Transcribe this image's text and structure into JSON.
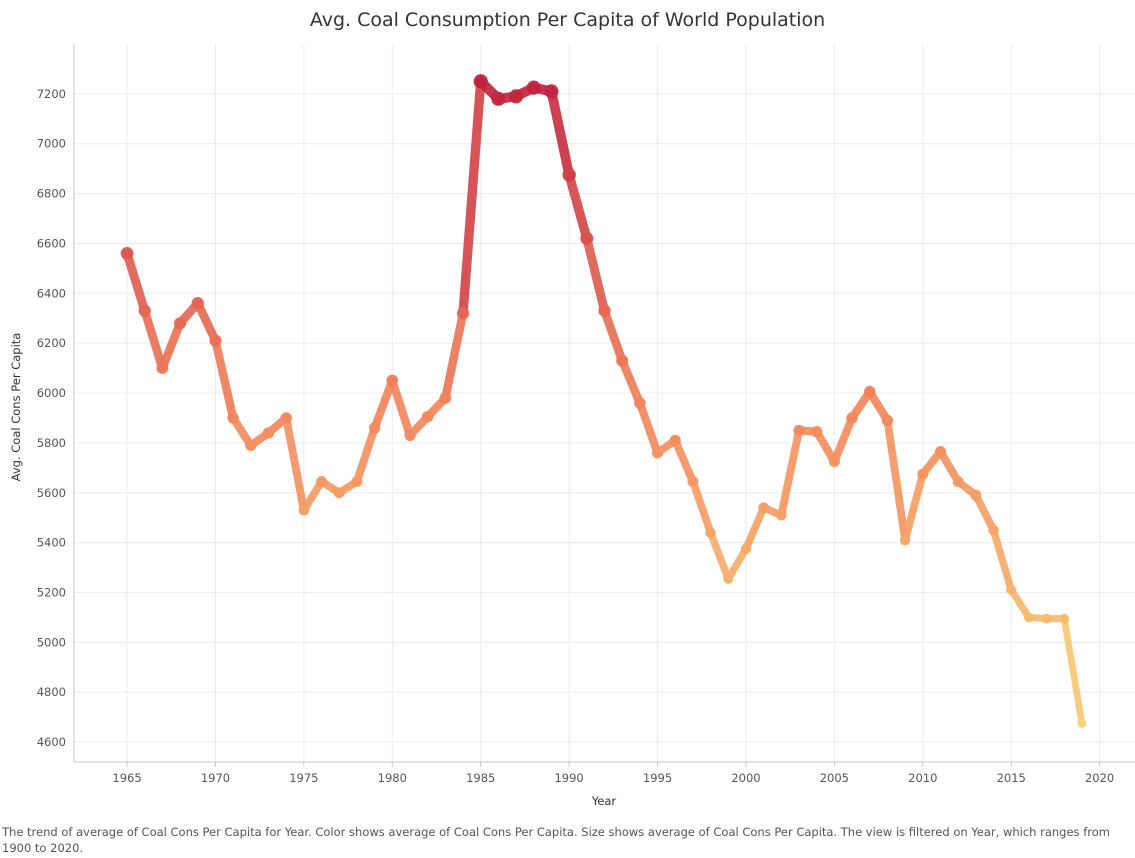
{
  "chart_data": {
    "type": "line",
    "title": "Avg. Coal Consumption Per Capita of World Population",
    "xlabel": "Year",
    "ylabel": "Avg. Coal Cons Per Capita",
    "xlim": [
      1962,
      2022
    ],
    "ylim": [
      4520,
      7400
    ],
    "x_ticks": [
      1965,
      1970,
      1975,
      1980,
      1985,
      1990,
      1995,
      2000,
      2005,
      2010,
      2015,
      2020
    ],
    "y_ticks": [
      4600,
      4800,
      5000,
      5200,
      5400,
      5600,
      5800,
      6000,
      6200,
      6400,
      6600,
      6800,
      7000,
      7200
    ],
    "grid": true,
    "color_scale": {
      "low": "#f9d479",
      "mid": "#f2845c",
      "high": "#c0223f"
    },
    "series": [
      {
        "x": [
          1965,
          1966,
          1967,
          1968,
          1969,
          1970,
          1971,
          1972,
          1973,
          1974,
          1975,
          1976,
          1977,
          1978,
          1979,
          1980,
          1981,
          1982,
          1983,
          1984,
          1985,
          1986,
          1987,
          1988,
          1989,
          1990,
          1991,
          1992,
          1993,
          1994,
          1995,
          1996,
          1997,
          1998,
          1999,
          2000,
          2001,
          2002,
          2003,
          2004,
          2005,
          2006,
          2007,
          2008,
          2009,
          2010,
          2011,
          2012,
          2013,
          2014,
          2015,
          2016,
          2017,
          2018,
          2019
        ],
        "y": [
          6560,
          6330,
          6100,
          6280,
          6360,
          6210,
          5900,
          5790,
          5840,
          5900,
          5530,
          5645,
          5600,
          5645,
          5860,
          6050,
          5830,
          5905,
          5980,
          6320,
          7250,
          7180,
          7190,
          7225,
          7210,
          6875,
          6620,
          6330,
          6130,
          5960,
          5760,
          5810,
          5645,
          5440,
          5255,
          5375,
          5540,
          5510,
          5850,
          5845,
          5725,
          5900,
          6005,
          5890,
          5410,
          5675,
          5765,
          5645,
          5590,
          5450,
          5210,
          5100,
          5095,
          5095,
          4675
        ]
      }
    ]
  },
  "caption": "The trend of average of Coal Cons Per Capita for Year.  Color shows average of Coal Cons Per Capita.  Size shows average of Coal Cons Per Capita. The view is filtered on Year, which ranges from 1900 to 2020."
}
